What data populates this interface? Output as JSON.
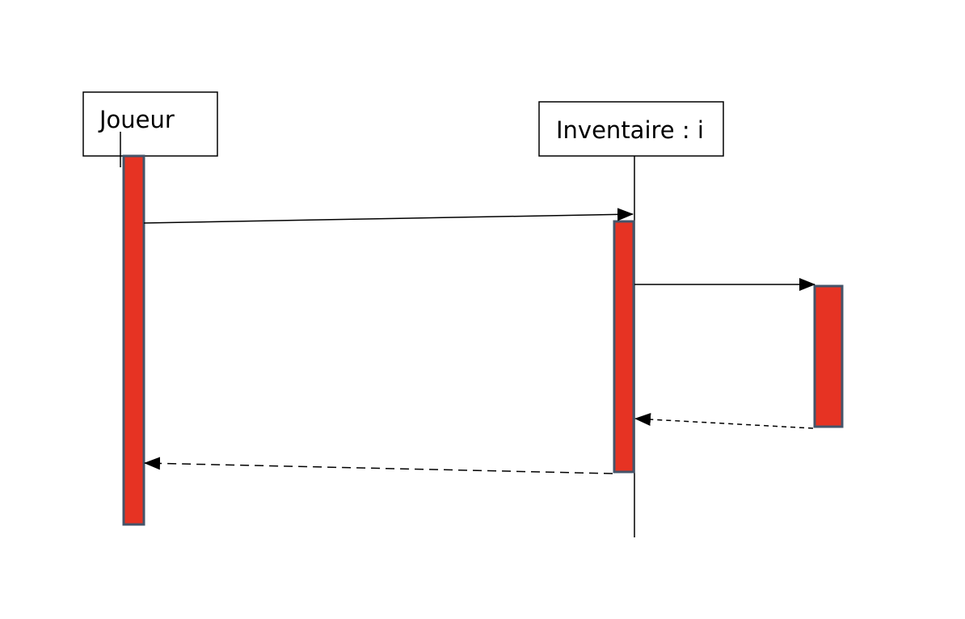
{
  "participants": [
    {
      "id": "joueur",
      "label": "Joueur"
    },
    {
      "id": "inventaire",
      "label": "Inventaire : i"
    }
  ],
  "colors": {
    "activation_fill": "#e63323",
    "activation_stroke": "#44546a",
    "line": "#000000",
    "box_border": "#000000"
  }
}
